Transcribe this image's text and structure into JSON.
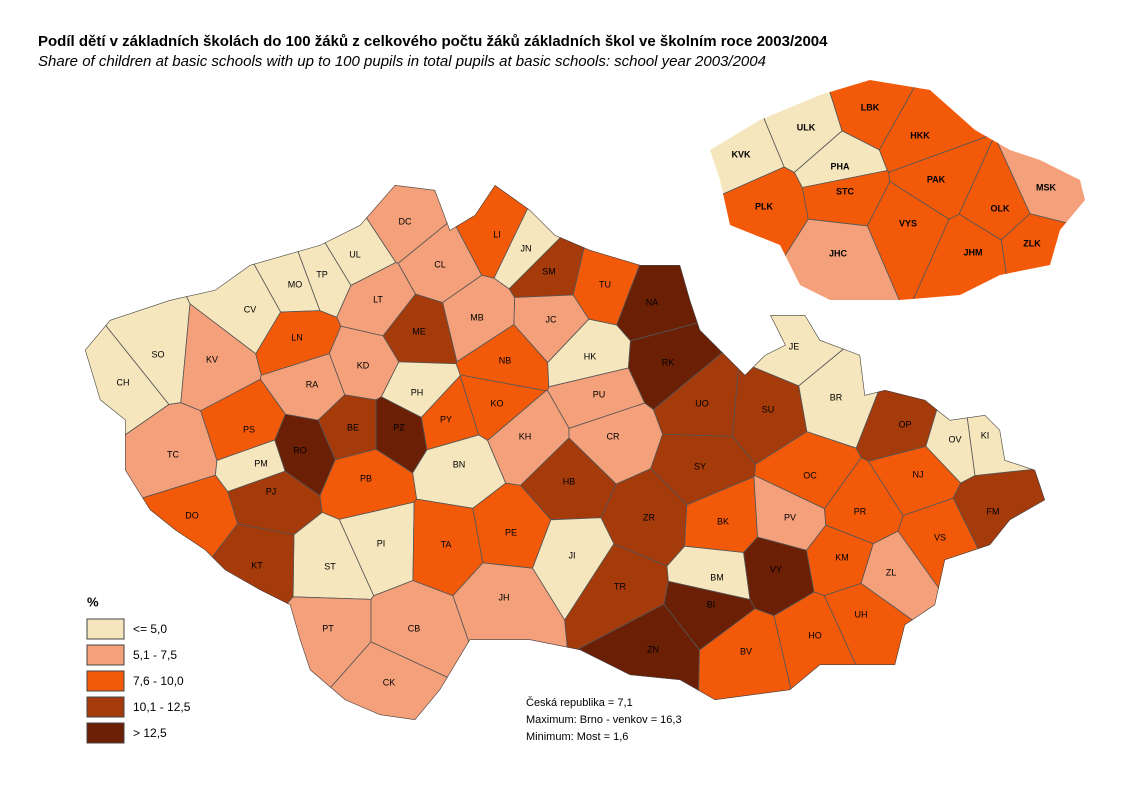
{
  "title": "Podíl dětí v základních školách do 100 žáků z celkového počtu žáků základních škol ve školním roce 2003/2004",
  "subtitle": "Share of children at basic schools with up to 100 pupils in total pupils at basic schools: school year 2003/2004",
  "legend": {
    "title": "%",
    "classes": [
      {
        "label": "<=  5,0",
        "color": "#f5e6bd"
      },
      {
        "label": "5,1 - 7,5",
        "color": "#f4a07a"
      },
      {
        "label": "7,6 - 10,0",
        "color": "#f25a0a"
      },
      {
        "label": "10,1 - 12,5",
        "color": "#a53a0b"
      },
      {
        "label": "> 12,5",
        "color": "#6b1f05"
      }
    ]
  },
  "districts": [
    {
      "code": "DC",
      "class": 1
    },
    {
      "code": "UL",
      "class": 0
    },
    {
      "code": "TP",
      "class": 0
    },
    {
      "code": "MO",
      "class": 0
    },
    {
      "code": "CV",
      "class": 0
    },
    {
      "code": "SO",
      "class": 0
    },
    {
      "code": "CH",
      "class": 0
    },
    {
      "code": "KV",
      "class": 1
    },
    {
      "code": "LT",
      "class": 1
    },
    {
      "code": "CL",
      "class": 1
    },
    {
      "code": "LI",
      "class": 2
    },
    {
      "code": "JN",
      "class": 0
    },
    {
      "code": "SM",
      "class": 3
    },
    {
      "code": "TU",
      "class": 2
    },
    {
      "code": "NA",
      "class": 4
    },
    {
      "code": "JC",
      "class": 1
    },
    {
      "code": "MB",
      "class": 1
    },
    {
      "code": "ME",
      "class": 3
    },
    {
      "code": "LN",
      "class": 2
    },
    {
      "code": "KD",
      "class": 1
    },
    {
      "code": "RA",
      "class": 1
    },
    {
      "code": "PH",
      "class": 0
    },
    {
      "code": "NB",
      "class": 2
    },
    {
      "code": "HK",
      "class": 0
    },
    {
      "code": "RK",
      "class": 4
    },
    {
      "code": "KO",
      "class": 2
    },
    {
      "code": "PU",
      "class": 1
    },
    {
      "code": "PY",
      "class": 2
    },
    {
      "code": "PZ",
      "class": 4
    },
    {
      "code": "BE",
      "class": 3
    },
    {
      "code": "RO",
      "class": 4
    },
    {
      "code": "PS",
      "class": 2
    },
    {
      "code": "TC",
      "class": 1
    },
    {
      "code": "PM",
      "class": 0
    },
    {
      "code": "PJ",
      "class": 3
    },
    {
      "code": "KH",
      "class": 1
    },
    {
      "code": "CR",
      "class": 1
    },
    {
      "code": "UO",
      "class": 3
    },
    {
      "code": "SU",
      "class": 3
    },
    {
      "code": "BN",
      "class": 0
    },
    {
      "code": "PB",
      "class": 2
    },
    {
      "code": "HB",
      "class": 3
    },
    {
      "code": "SY",
      "class": 3
    },
    {
      "code": "DO",
      "class": 2
    },
    {
      "code": "ZR",
      "class": 3
    },
    {
      "code": "BK",
      "class": 2
    },
    {
      "code": "PV",
      "class": 1
    },
    {
      "code": "PI",
      "class": 0
    },
    {
      "code": "ST",
      "class": 0
    },
    {
      "code": "TA",
      "class": 2
    },
    {
      "code": "PE",
      "class": 2
    },
    {
      "code": "JI",
      "class": 0
    },
    {
      "code": "KT",
      "class": 3
    },
    {
      "code": "TR",
      "class": 3
    },
    {
      "code": "BM",
      "class": 0
    },
    {
      "code": "VY",
      "class": 4
    },
    {
      "code": "BI",
      "class": 4
    },
    {
      "code": "JH",
      "class": 1
    },
    {
      "code": "PT",
      "class": 1
    },
    {
      "code": "CB",
      "class": 1
    },
    {
      "code": "CK",
      "class": 1
    },
    {
      "code": "ZN",
      "class": 4
    },
    {
      "code": "BV",
      "class": 2
    },
    {
      "code": "HO",
      "class": 2
    },
    {
      "code": "UH",
      "class": 2
    },
    {
      "code": "ZL",
      "class": 1
    },
    {
      "code": "KM",
      "class": 2
    },
    {
      "code": "VS",
      "class": 2
    },
    {
      "code": "PR",
      "class": 2
    },
    {
      "code": "OC",
      "class": 2
    },
    {
      "code": "NJ",
      "class": 2
    },
    {
      "code": "FM",
      "class": 3
    },
    {
      "code": "OP",
      "class": 3
    },
    {
      "code": "OV",
      "class": 0
    },
    {
      "code": "KI",
      "class": 0
    },
    {
      "code": "JE",
      "class": 0
    },
    {
      "code": "BR",
      "class": 0
    }
  ],
  "regions": [
    {
      "code": "ULK",
      "class": 0
    },
    {
      "code": "LBK",
      "class": 2
    },
    {
      "code": "KVK",
      "class": 0
    },
    {
      "code": "PHA",
      "class": 0
    },
    {
      "code": "HKK",
      "class": 2
    },
    {
      "code": "STC",
      "class": 2
    },
    {
      "code": "PAK",
      "class": 2
    },
    {
      "code": "MSK",
      "class": 1
    },
    {
      "code": "PLK",
      "class": 2
    },
    {
      "code": "OLK",
      "class": 2
    },
    {
      "code": "VYS",
      "class": 2
    },
    {
      "code": "ZLK",
      "class": 2
    },
    {
      "code": "JHC",
      "class": 1
    },
    {
      "code": "JHM",
      "class": 2
    }
  ],
  "notes": [
    "Česká republika = 7,1",
    "Maximum: Brno - venkov = 16,3",
    "Minimum: Most = 1,6"
  ]
}
